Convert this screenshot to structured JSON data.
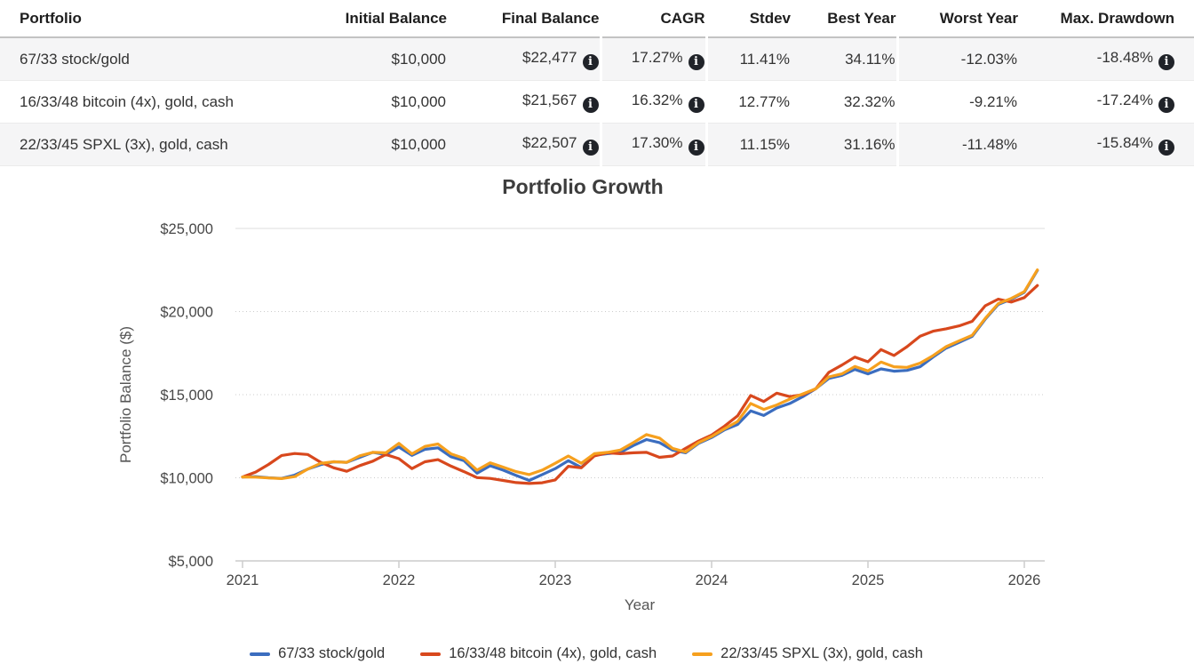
{
  "icons": {
    "info_glyph": "i"
  },
  "colors": {
    "series_blue": "#3b6dbf",
    "series_red": "#d8481d",
    "series_orange": "#f6a01e",
    "axis": "#cccccc",
    "grid": "#dddddd",
    "row_stripe": "#f5f5f6",
    "info_icon_bg": "#202329"
  },
  "table": {
    "columns": [
      "Portfolio",
      "Initial Balance",
      "Final Balance",
      "CAGR",
      "Stdev",
      "Best Year",
      "Worst Year",
      "Max. Drawdown"
    ],
    "rows": [
      {
        "portfolio": "67/33 stock/gold",
        "initial_balance": "$10,000",
        "final_balance": "$22,477",
        "cagr": "17.27%",
        "stdev": "11.41%",
        "best_year": "34.11%",
        "worst_year": "-12.03%",
        "max_drawdown": "-18.48%"
      },
      {
        "portfolio": "16/33/48 bitcoin (4x), gold, cash",
        "initial_balance": "$10,000",
        "final_balance": "$21,567",
        "cagr": "16.32%",
        "stdev": "12.77%",
        "best_year": "32.32%",
        "worst_year": "-9.21%",
        "max_drawdown": "-17.24%"
      },
      {
        "portfolio": "22/33/45 SPXL (3x), gold, cash",
        "initial_balance": "$10,000",
        "final_balance": "$22,507",
        "cagr": "17.30%",
        "stdev": "11.15%",
        "best_year": "31.16%",
        "worst_year": "-11.48%",
        "max_drawdown": "-15.84%"
      }
    ]
  },
  "chart_data": {
    "type": "line",
    "title": "Portfolio Growth",
    "xlabel": "Year",
    "ylabel": "Portfolio Balance ($)",
    "ylim": [
      5000,
      25000
    ],
    "grid": true,
    "legend_position": "bottom",
    "frequency": "monthly",
    "x": [
      "2021-01",
      "2021-02",
      "2021-03",
      "2021-04",
      "2021-05",
      "2021-06",
      "2021-07",
      "2021-08",
      "2021-09",
      "2021-10",
      "2021-11",
      "2021-12",
      "2022-01",
      "2022-02",
      "2022-03",
      "2022-04",
      "2022-05",
      "2022-06",
      "2022-07",
      "2022-08",
      "2022-09",
      "2022-10",
      "2022-11",
      "2022-12",
      "2023-01",
      "2023-02",
      "2023-03",
      "2023-04",
      "2023-05",
      "2023-06",
      "2023-07",
      "2023-08",
      "2023-09",
      "2023-10",
      "2023-11",
      "2023-12",
      "2024-01",
      "2024-02",
      "2024-03",
      "2024-04",
      "2024-05",
      "2024-06",
      "2024-07",
      "2024-08",
      "2024-09",
      "2024-10",
      "2024-11",
      "2024-12",
      "2025-01",
      "2025-02",
      "2025-03",
      "2025-04",
      "2025-05",
      "2025-06",
      "2025-07",
      "2025-08",
      "2025-09",
      "2025-10",
      "2025-11",
      "2025-12",
      "2026-01",
      "2026-02"
    ],
    "xticks": [
      {
        "label": "2021",
        "month": 0
      },
      {
        "label": "2022",
        "month": 12
      },
      {
        "label": "2023",
        "month": 24
      },
      {
        "label": "2024",
        "month": 36
      },
      {
        "label": "2025",
        "month": 48
      },
      {
        "label": "2026",
        "month": 60
      }
    ],
    "yticks": [
      {
        "label": "$5,000",
        "value": 5000
      },
      {
        "label": "$10,000",
        "value": 10000
      },
      {
        "label": "$15,000",
        "value": 15000
      },
      {
        "label": "$20,000",
        "value": 20000
      },
      {
        "label": "$25,000",
        "value": 25000
      }
    ],
    "series": [
      {
        "name": "67/33 stock/gold",
        "color": "#3b6dbf",
        "values": [
          10050,
          10070,
          10000,
          9960,
          10160,
          10520,
          10790,
          10960,
          10930,
          11230,
          11530,
          11400,
          11850,
          11350,
          11710,
          11800,
          11260,
          11030,
          10280,
          10720,
          10460,
          10140,
          9840,
          10190,
          10550,
          11030,
          10620,
          11360,
          11450,
          11530,
          11940,
          12300,
          12120,
          11670,
          11500,
          12070,
          12420,
          12890,
          13210,
          14020,
          13750,
          14200,
          14470,
          14880,
          15360,
          15980,
          16160,
          16520,
          16250,
          16550,
          16410,
          16460,
          16680,
          17260,
          17800,
          18150,
          18510,
          19540,
          20430,
          20750,
          21160,
          22477
        ]
      },
      {
        "name": "16/33/48 bitcoin (4x), gold, cash",
        "color": "#d8481d",
        "values": [
          10050,
          10340,
          10800,
          11340,
          11460,
          11400,
          10930,
          10600,
          10390,
          10730,
          11000,
          11400,
          11150,
          10550,
          10960,
          11090,
          10700,
          10370,
          10010,
          9960,
          9840,
          9710,
          9660,
          9700,
          9870,
          10690,
          10600,
          11310,
          11500,
          11450,
          11500,
          11530,
          11230,
          11310,
          11770,
          12210,
          12570,
          13110,
          13730,
          14950,
          14590,
          15090,
          14880,
          15000,
          15360,
          16340,
          16780,
          17260,
          16980,
          17710,
          17360,
          17890,
          18520,
          18820,
          18960,
          19140,
          19410,
          20350,
          20750,
          20570,
          20840,
          21567
        ]
      },
      {
        "name": "22/33/45 SPXL (3x), gold, cash",
        "color": "#f6a01e",
        "values": [
          10050,
          10040,
          9990,
          9950,
          10070,
          10520,
          10870,
          10960,
          10930,
          11320,
          11530,
          11500,
          12070,
          11440,
          11890,
          12030,
          11440,
          11170,
          10460,
          10900,
          10640,
          10370,
          10190,
          10460,
          10870,
          11310,
          10870,
          11450,
          11530,
          11670,
          12120,
          12600,
          12390,
          11770,
          11550,
          12120,
          12480,
          12950,
          13390,
          14470,
          14110,
          14380,
          14730,
          15050,
          15360,
          16070,
          16250,
          16700,
          16430,
          16960,
          16680,
          16640,
          16900,
          17350,
          17890,
          18240,
          18570,
          19590,
          20480,
          20790,
          21200,
          22507
        ]
      }
    ]
  }
}
